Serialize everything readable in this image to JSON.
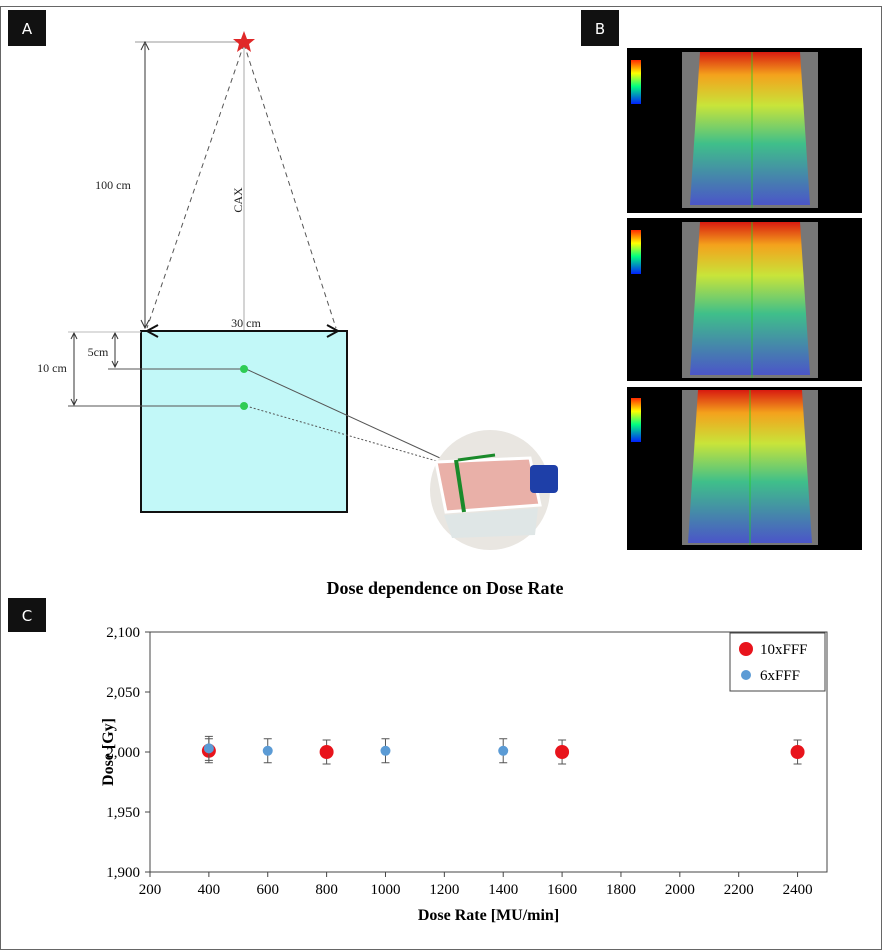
{
  "panels": {
    "a": "A",
    "b": "B",
    "c": "C"
  },
  "diagram": {
    "sad": "100 cm",
    "axis": "CAX",
    "field": "30 cm",
    "depth1": "5cm",
    "depth2": "10 cm"
  },
  "chart_data": {
    "type": "scatter",
    "title": "Dose dependence on Dose Rate",
    "x_label": "Dose Rate [MU/min]",
    "y_label": "Dose [Gy]",
    "xlim": [
      200,
      2500
    ],
    "ylim": [
      1900,
      2100
    ],
    "xticks": [
      200,
      400,
      600,
      800,
      1000,
      1200,
      1400,
      1600,
      1800,
      2000,
      2200,
      2400
    ],
    "yticks": [
      {
        "value": 1900,
        "label": "1,900"
      },
      {
        "value": 1950,
        "label": "1,950"
      },
      {
        "value": 2000,
        "label": "2,000"
      },
      {
        "value": 2050,
        "label": "2,050"
      },
      {
        "value": 2100,
        "label": "2,100"
      }
    ],
    "legend": "upper right",
    "series": [
      {
        "name": "10xFFF",
        "color": "#e8141c",
        "x": [
          400,
          800,
          1600,
          2400
        ],
        "values": [
          2001,
          2000,
          2000,
          2000
        ],
        "errors": [
          10,
          10,
          10,
          10
        ]
      },
      {
        "name": "6xFFF",
        "color": "#5b9bd5",
        "x": [
          400,
          600,
          1000,
          1400
        ],
        "values": [
          2003,
          2001,
          2001,
          2001
        ],
        "errors": [
          10,
          10,
          10,
          10
        ]
      }
    ]
  }
}
